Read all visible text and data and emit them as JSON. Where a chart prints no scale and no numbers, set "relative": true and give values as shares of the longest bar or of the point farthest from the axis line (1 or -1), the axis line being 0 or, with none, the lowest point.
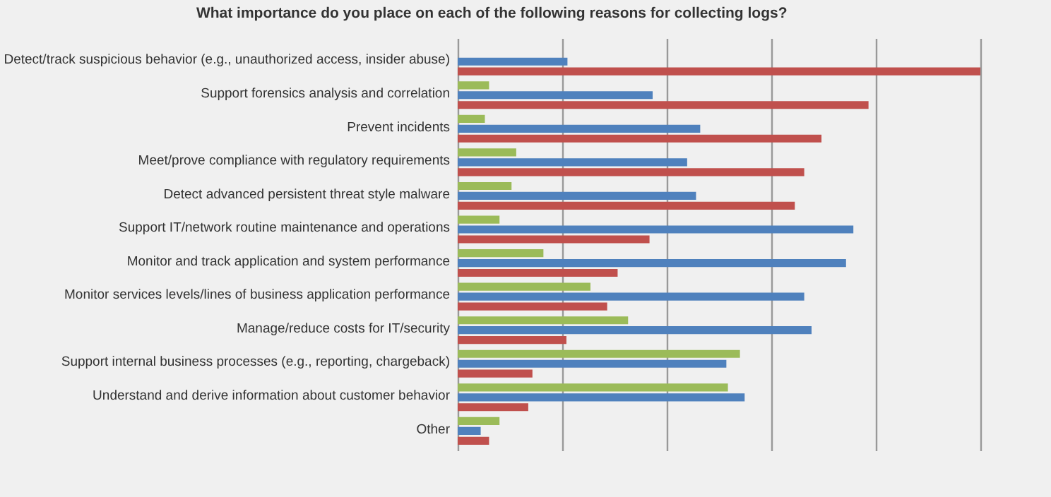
{
  "chart_data": {
    "type": "bar",
    "orientation": "horizontal",
    "relative": true,
    "grid": "x",
    "legend": false,
    "title": "What importance do you place on each of the following reasons for collecting logs?",
    "categories": [
      "Detect/track suspicious behavior (e.g., unauthorized access, insider abuse)",
      "Support forensics analysis and correlation",
      "Prevent incidents",
      "Meet/prove compliance with regulatory requirements",
      "Detect advanced persistent threat style malware",
      "Support IT/network routine maintenance and operations",
      "Monitor and track application and system performance",
      "Monitor services levels/lines of business application performance",
      "Manage/reduce costs for IT/security",
      "Support internal business processes (e.g., reporting, chargeback)",
      "Understand and derive information about customer behavior",
      "Other"
    ],
    "series": [
      {
        "color": "#9bbb59",
        "values": [
          0,
          0.06,
          0.052,
          0.112,
          0.103,
          0.08,
          0.164,
          0.254,
          0.326,
          0.54,
          0.517,
          0.08
        ]
      },
      {
        "color": "#4f81bd",
        "values": [
          0.21,
          0.373,
          0.464,
          0.439,
          0.456,
          0.757,
          0.743,
          0.663,
          0.677,
          0.514,
          0.549,
          0.044
        ]
      },
      {
        "color": "#c0504d",
        "values": [
          1,
          0.786,
          0.696,
          0.663,
          0.645,
          0.367,
          0.306,
          0.286,
          0.208,
          0.143,
          0.135,
          0.06
        ]
      }
    ]
  }
}
